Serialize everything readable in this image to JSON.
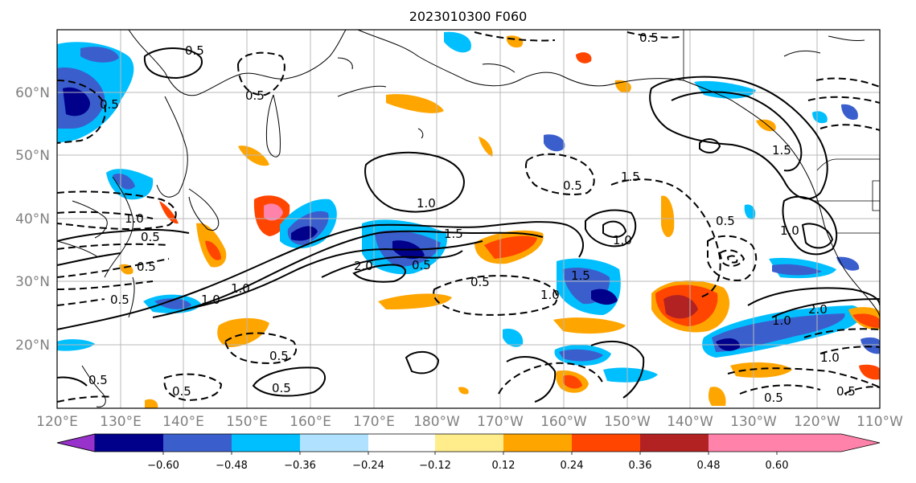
{
  "title": "2023010300 F060",
  "lat_labels": [
    "60°N",
    "50°N",
    "40°N",
    "30°N",
    "20°N"
  ],
  "lon_labels": [
    "120°E",
    "130°E",
    "140°E",
    "150°E",
    "160°E",
    "170°E",
    "180°W",
    "170°W",
    "160°W",
    "150°W",
    "140°W",
    "130°W",
    "120°W",
    "110°W"
  ],
  "colorbar": {
    "colors": [
      "#9932cc",
      "#00008b",
      "#3a5fcd",
      "#00bfff",
      "#b0e2ff",
      "#ffffff",
      "#ffec8b",
      "#ffa500",
      "#ff4500",
      "#b22222",
      "#ff82ab"
    ],
    "tick_labels": [
      "−0.60",
      "−0.48",
      "−0.36",
      "−0.24",
      "−0.12",
      "0.12",
      "0.24",
      "0.36",
      "0.48",
      "0.60"
    ]
  },
  "contour_labels": {
    "solid": [
      "1.0",
      "1.0",
      "1.0",
      "1.5",
      "2.0",
      "2.0",
      "1.5",
      "1.0",
      "1.5",
      "1.0",
      "1.0",
      "1.5",
      "1.0",
      "0.5"
    ],
    "dashed": [
      "0.5",
      "0.5",
      "0.5",
      "0.5",
      "0.5",
      "0.5",
      "0.5",
      "0.5",
      "0.5",
      "1.0",
      "0.5",
      "0.5",
      "1.0",
      "0.5",
      "0.5",
      "0.5",
      "0.5",
      "0.5"
    ]
  }
}
